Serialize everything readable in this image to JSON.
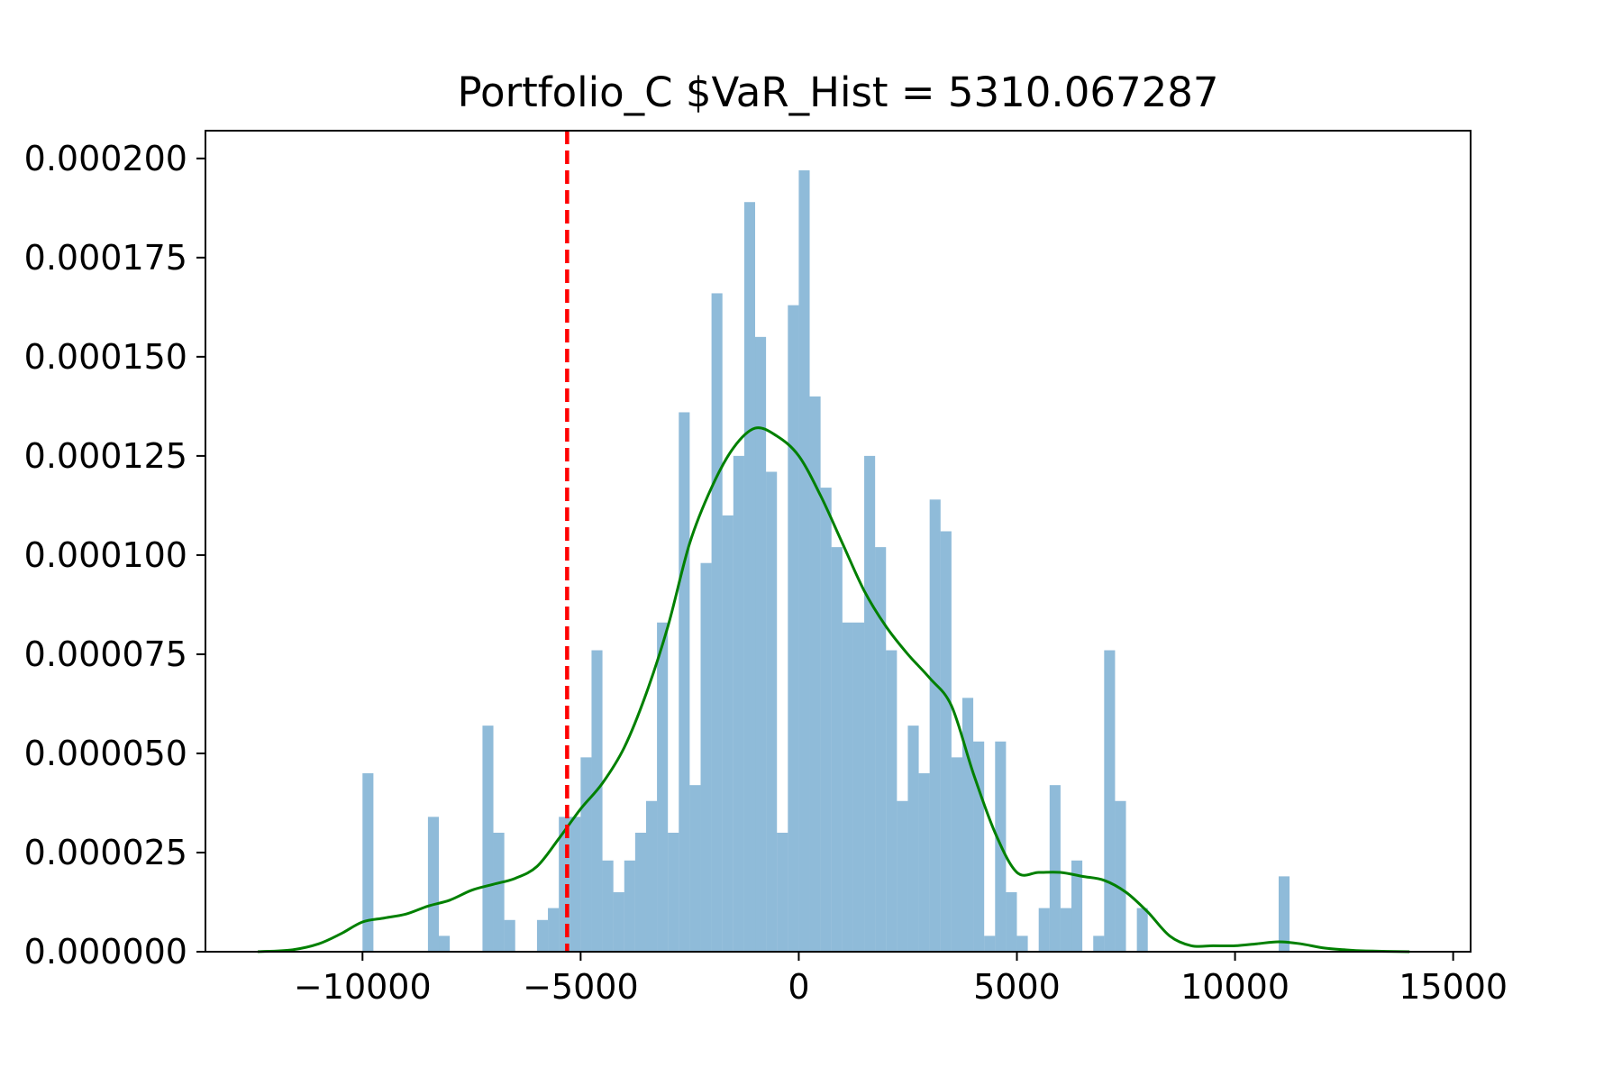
{
  "chart_data": {
    "type": "histogram",
    "title": "Portfolio_C $VaR_Hist = 5310.067287",
    "xlabel": "",
    "ylabel": "",
    "xlim": [
      -13600,
      15400
    ],
    "ylim": [
      0,
      0.000207
    ],
    "x_ticks": [
      -10000,
      -5000,
      0,
      5000,
      10000,
      15000
    ],
    "x_tick_labels": [
      "−10000",
      "−5000",
      "0",
      "5000",
      "10000",
      "15000"
    ],
    "y_ticks": [
      0,
      2.5e-05,
      5e-05,
      7.5e-05,
      0.0001,
      0.000125,
      0.00015,
      0.000175,
      0.0002
    ],
    "y_tick_labels": [
      "0.000000",
      "0.000025",
      "0.000050",
      "0.000075",
      "0.000100",
      "0.000125",
      "0.000150",
      "0.000175",
      "0.000200"
    ],
    "grid": false,
    "legend": "none",
    "colors": {
      "bars": "#1f77b4",
      "bar_opacity": 0.5,
      "kde": "#008000",
      "var_line": "#ff0000"
    },
    "bin_width": 250,
    "bins": [
      {
        "x": -9875,
        "height": 4.5e-05
      },
      {
        "x": -8375,
        "height": 3.4e-05
      },
      {
        "x": -8125,
        "height": 4e-06
      },
      {
        "x": -7125,
        "height": 5.7e-05
      },
      {
        "x": -6875,
        "height": 3e-05
      },
      {
        "x": -6625,
        "height": 8e-06
      },
      {
        "x": -5875,
        "height": 8e-06
      },
      {
        "x": -5625,
        "height": 1.1e-05
      },
      {
        "x": -5375,
        "height": 3.4e-05
      },
      {
        "x": -5125,
        "height": 3.4e-05
      },
      {
        "x": -4875,
        "height": 4.9e-05
      },
      {
        "x": -4625,
        "height": 7.6e-05
      },
      {
        "x": -4375,
        "height": 2.3e-05
      },
      {
        "x": -4125,
        "height": 1.5e-05
      },
      {
        "x": -3875,
        "height": 2.3e-05
      },
      {
        "x": -3625,
        "height": 3e-05
      },
      {
        "x": -3375,
        "height": 3.8e-05
      },
      {
        "x": -3125,
        "height": 8.3e-05
      },
      {
        "x": -2875,
        "height": 3e-05
      },
      {
        "x": -2625,
        "height": 0.000136
      },
      {
        "x": -2375,
        "height": 4.2e-05
      },
      {
        "x": -2125,
        "height": 9.8e-05
      },
      {
        "x": -1875,
        "height": 0.000166
      },
      {
        "x": -1625,
        "height": 0.00011
      },
      {
        "x": -1375,
        "height": 0.000125
      },
      {
        "x": -1125,
        "height": 0.000189
      },
      {
        "x": -875,
        "height": 0.000155
      },
      {
        "x": -625,
        "height": 0.000121
      },
      {
        "x": -375,
        "height": 3e-05
      },
      {
        "x": -125,
        "height": 0.000163
      },
      {
        "x": 125,
        "height": 0.000197
      },
      {
        "x": 375,
        "height": 0.00014
      },
      {
        "x": 625,
        "height": 0.000117
      },
      {
        "x": 875,
        "height": 0.000102
      },
      {
        "x": 1125,
        "height": 8.3e-05
      },
      {
        "x": 1375,
        "height": 8.3e-05
      },
      {
        "x": 1625,
        "height": 0.000125
      },
      {
        "x": 1875,
        "height": 0.000102
      },
      {
        "x": 2125,
        "height": 7.6e-05
      },
      {
        "x": 2375,
        "height": 3.8e-05
      },
      {
        "x": 2625,
        "height": 5.7e-05
      },
      {
        "x": 2875,
        "height": 4.5e-05
      },
      {
        "x": 3125,
        "height": 0.000114
      },
      {
        "x": 3375,
        "height": 0.000106
      },
      {
        "x": 3625,
        "height": 4.9e-05
      },
      {
        "x": 3875,
        "height": 6.4e-05
      },
      {
        "x": 4125,
        "height": 5.3e-05
      },
      {
        "x": 4375,
        "height": 4e-06
      },
      {
        "x": 4625,
        "height": 5.3e-05
      },
      {
        "x": 4875,
        "height": 1.5e-05
      },
      {
        "x": 5125,
        "height": 4e-06
      },
      {
        "x": 5625,
        "height": 1.1e-05
      },
      {
        "x": 5875,
        "height": 4.2e-05
      },
      {
        "x": 6125,
        "height": 1.1e-05
      },
      {
        "x": 6375,
        "height": 2.3e-05
      },
      {
        "x": 6875,
        "height": 4e-06
      },
      {
        "x": 7125,
        "height": 7.6e-05
      },
      {
        "x": 7375,
        "height": 3.8e-05
      },
      {
        "x": 7875,
        "height": 1.1e-05
      },
      {
        "x": 11125,
        "height": 1.9e-05
      }
    ],
    "kde": {
      "x": [
        -12400,
        -11600,
        -11000,
        -10500,
        -10000,
        -9500,
        -9000,
        -8500,
        -8000,
        -7500,
        -7000,
        -6500,
        -6000,
        -5500,
        -5000,
        -4500,
        -4000,
        -3500,
        -3000,
        -2500,
        -2000,
        -1500,
        -1000,
        -500,
        0,
        500,
        1000,
        1500,
        2000,
        2500,
        3000,
        3500,
        4000,
        4500,
        5000,
        5500,
        6000,
        6500,
        7000,
        7500,
        8000,
        8500,
        9000,
        9500,
        10000,
        10500,
        11000,
        11500,
        12000,
        12500,
        13000,
        14000
      ],
      "y": [
        0,
        5e-07,
        2e-06,
        4.5e-06,
        7.5e-06,
        8.5e-06,
        9.5e-06,
        1.15e-05,
        1.3e-05,
        1.55e-05,
        1.7e-05,
        1.85e-05,
        2.15e-05,
        2.85e-05,
        3.6e-05,
        4.25e-05,
        5.15e-05,
        6.5e-05,
        8.2e-05,
        0.000103,
        0.000117,
        0.000127,
        0.000132,
        0.00013,
        0.000125,
        0.000115,
        0.000103,
        9.1e-05,
        8.2e-05,
        7.5e-05,
        6.9e-05,
        6.2e-05,
        4.5e-05,
        3e-05,
        2e-05,
        2e-05,
        2e-05,
        1.9e-05,
        1.8e-05,
        1.5e-05,
        1e-05,
        4e-06,
        1.5e-06,
        1.5e-06,
        1.5e-06,
        2e-06,
        2.5e-06,
        2e-06,
        1e-06,
        5e-07,
        2e-07,
        0
      ]
    },
    "var_line": {
      "x": -5310.067287,
      "style": "dashed"
    }
  }
}
